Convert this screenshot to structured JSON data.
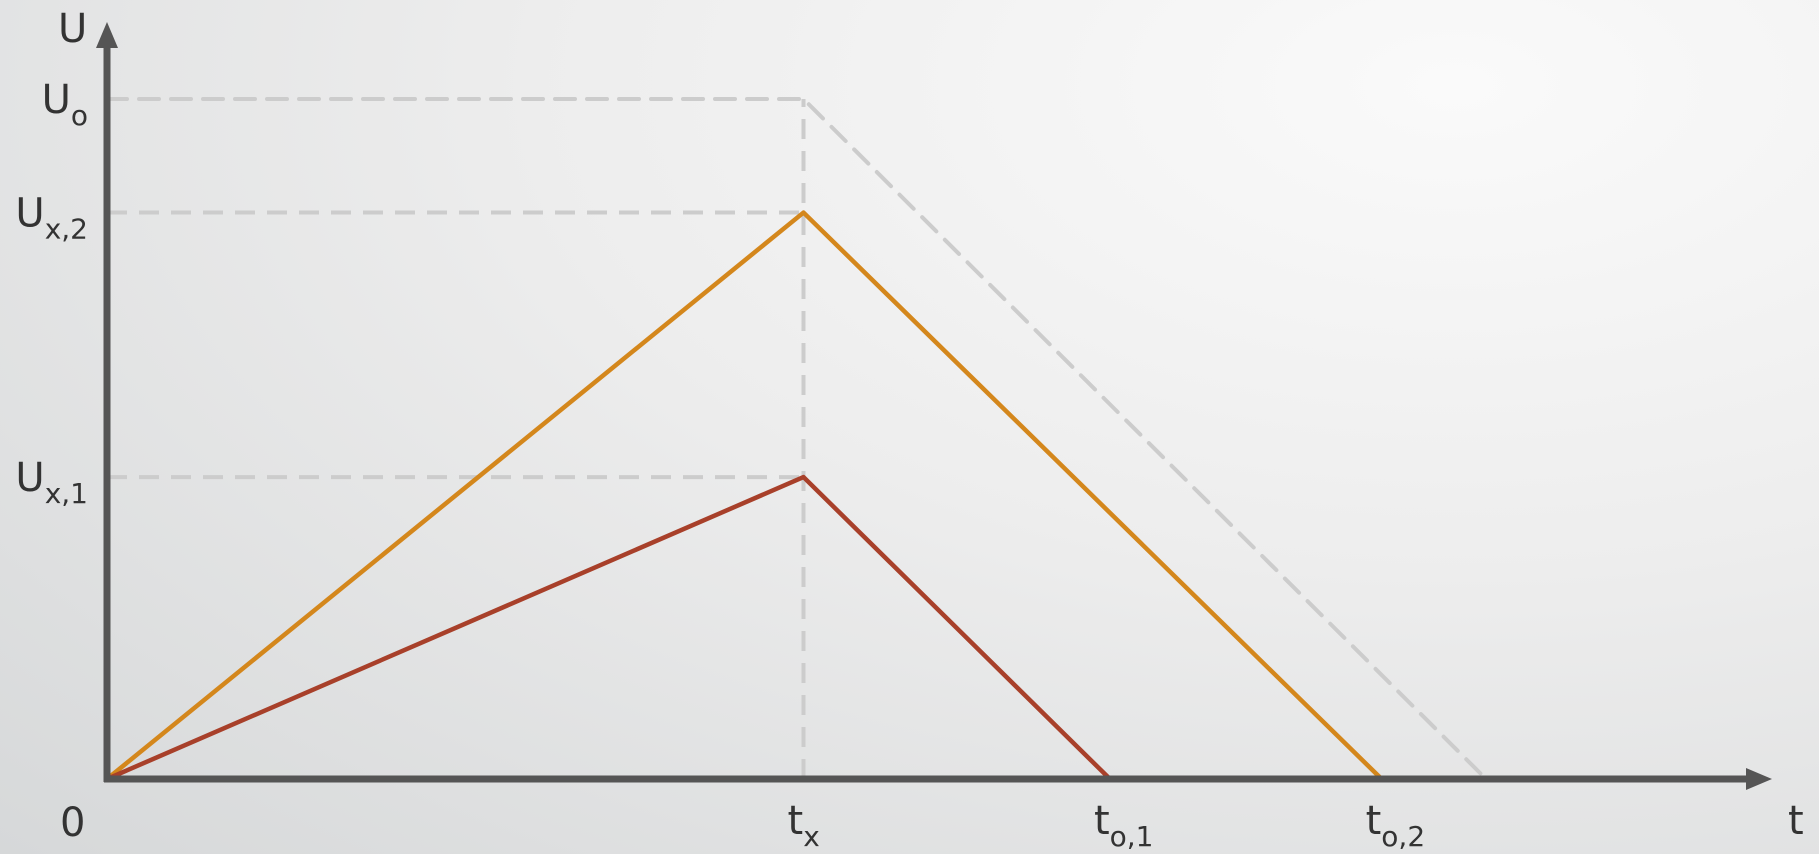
{
  "chart_data": {
    "type": "line",
    "title": "",
    "xlabel": "t",
    "ylabel": "U",
    "origin_label": "0",
    "x_ticks": [
      {
        "key": "tx",
        "main": "t",
        "sub": "x",
        "value": 0.5
      },
      {
        "key": "to1",
        "main": "t",
        "sub": "o,1",
        "value": 0.72
      },
      {
        "key": "to2",
        "main": "t",
        "sub": "o,2",
        "value": 0.915
      }
    ],
    "y_ticks": [
      {
        "key": "Uo",
        "main": "U",
        "sub": "o",
        "value": 1.0
      },
      {
        "key": "Ux2",
        "main": "U",
        "sub": "x,2",
        "value": 0.833
      },
      {
        "key": "Ux1",
        "main": "U",
        "sub": "x,1",
        "value": 0.444
      }
    ],
    "xlim": [
      0,
      1.1
    ],
    "ylim": [
      0,
      1.1
    ],
    "series": [
      {
        "key": "reference",
        "style": "dashed",
        "color": "#cccccc",
        "x": [
          0,
          0.5,
          0.99
        ],
        "y": [
          1.0,
          1.0,
          0
        ]
      },
      {
        "key": "orange",
        "style": "solid",
        "color": "#d4871c",
        "x": [
          0,
          0.5,
          0.915
        ],
        "y": [
          0,
          0.833,
          0
        ]
      },
      {
        "key": "red",
        "style": "solid",
        "color": "#a8402a",
        "x": [
          0,
          0.5,
          0.72
        ],
        "y": [
          0,
          0.444,
          0
        ]
      }
    ],
    "guides": [
      {
        "key": "Uo",
        "x": [
          0,
          0.5
        ],
        "y": [
          1.0,
          1.0
        ]
      },
      {
        "key": "Ux2",
        "x": [
          0,
          0.5
        ],
        "y": [
          0.833,
          0.833
        ]
      },
      {
        "key": "Ux1",
        "x": [
          0,
          0.5
        ],
        "y": [
          0.444,
          0.444
        ]
      },
      {
        "key": "tx",
        "x": [
          0.5,
          0.5
        ],
        "y": [
          0,
          1.0
        ]
      }
    ],
    "grid": false,
    "colors": {
      "axis": "#555555",
      "guide": "#cccccc",
      "text": "#333333"
    }
  }
}
